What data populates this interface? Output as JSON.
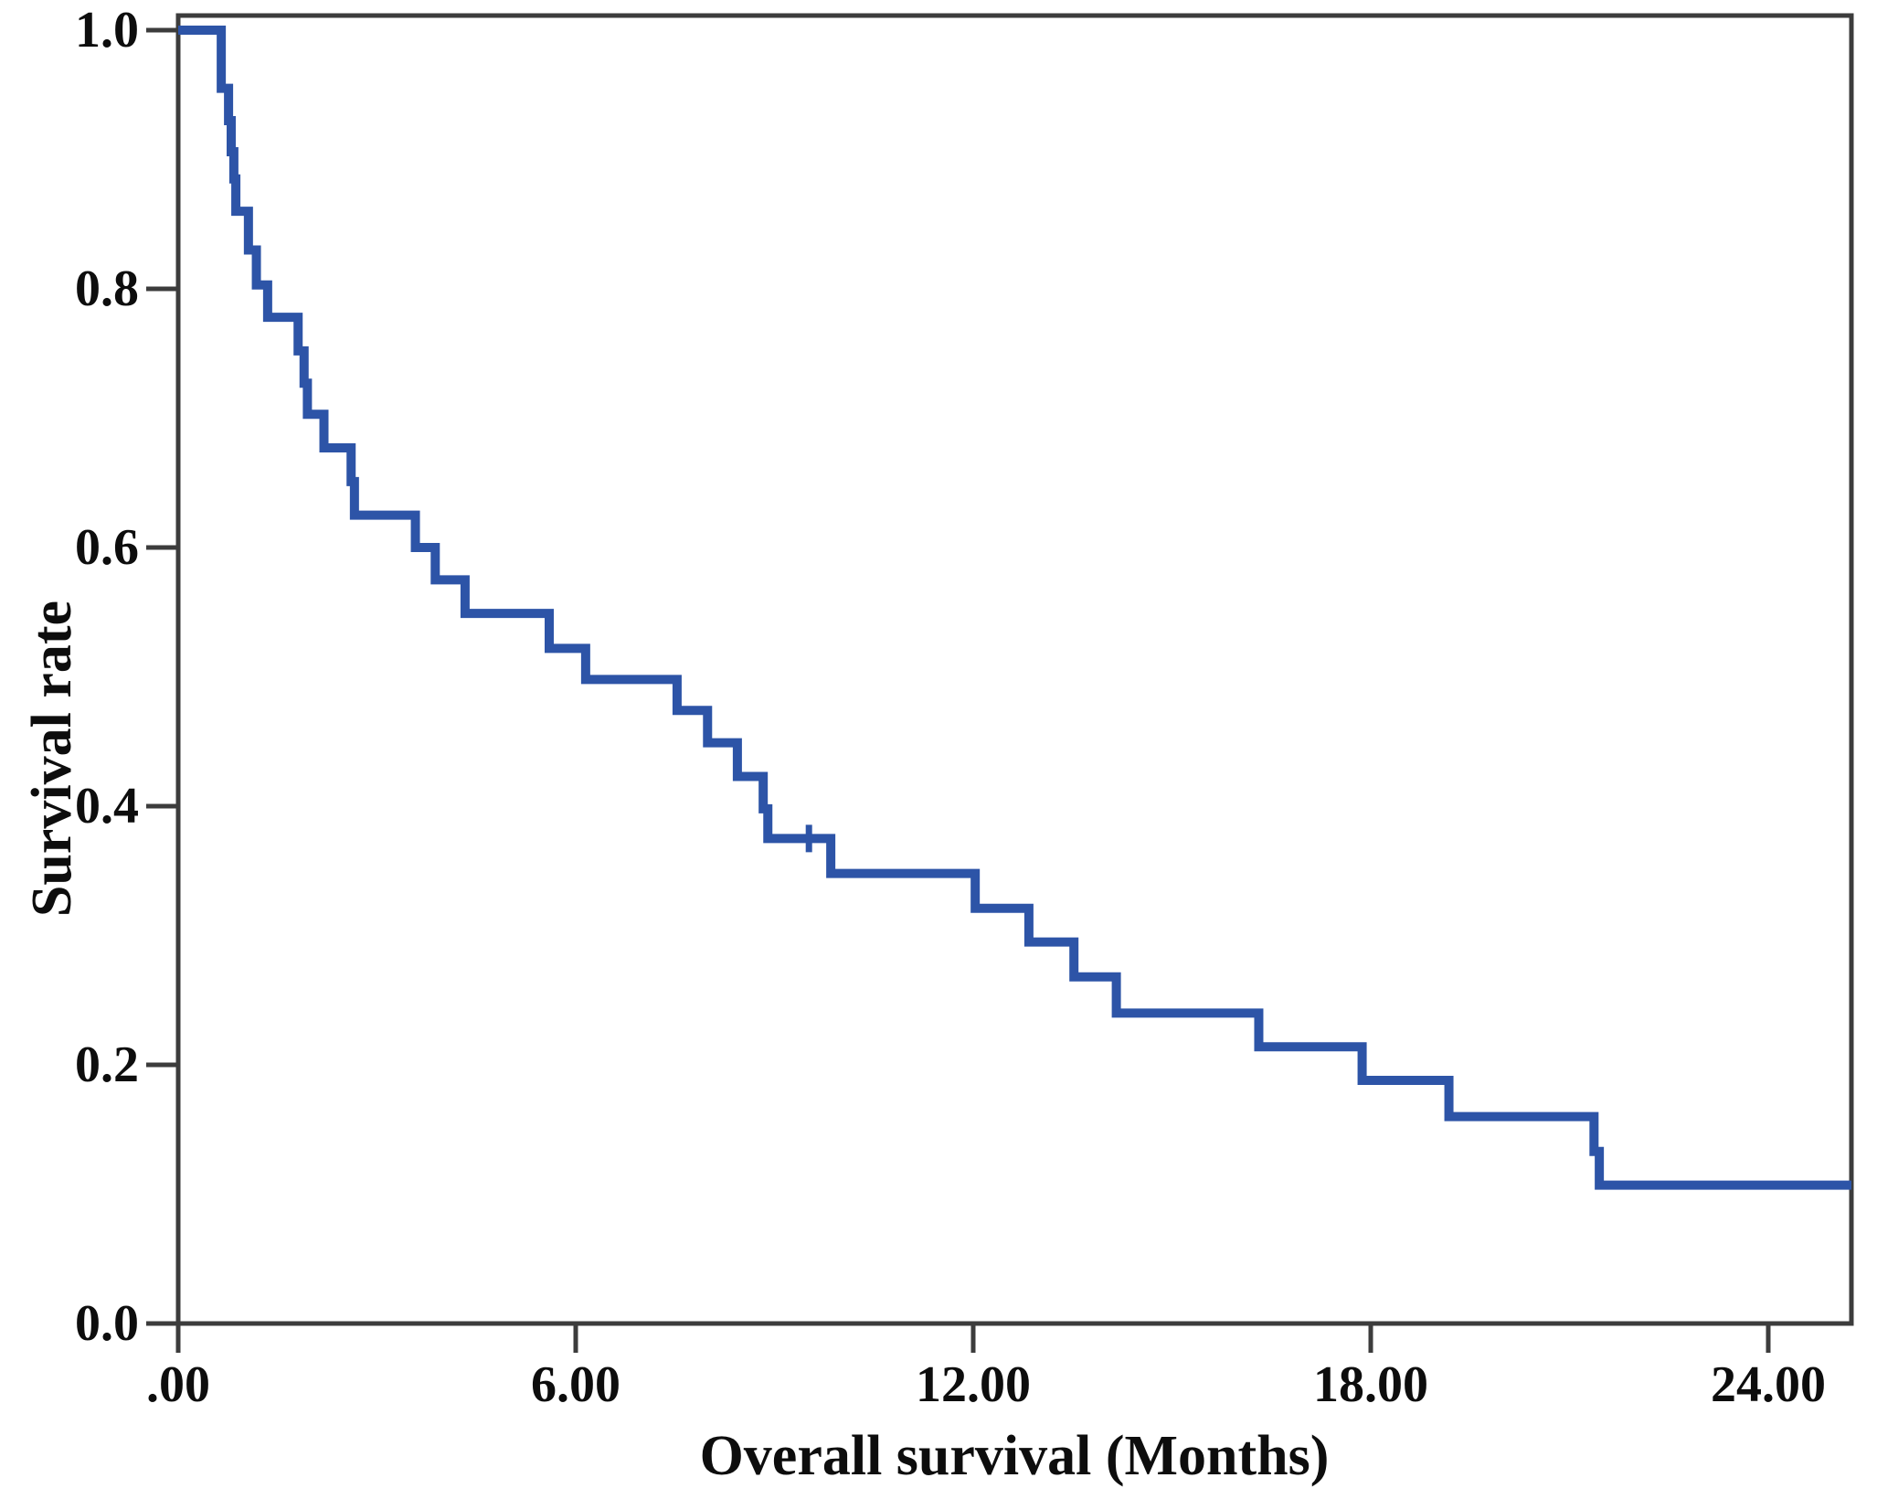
{
  "chart_data": {
    "type": "line",
    "subtype": "kaplan-meier-step",
    "title": "",
    "xlabel": "Overall survival (Months)",
    "ylabel": "Survival rate",
    "xlim": [
      0,
      25.3
    ],
    "ylim": [
      0.0,
      1.0
    ],
    "grid": false,
    "legend": "none",
    "background": "#ffffff",
    "frame_color": "#3c3c3c",
    "text_color": "#0d0d0d",
    "x_ticks": [
      {
        "value": 0,
        "label": ".00"
      },
      {
        "value": 6,
        "label": "6.00"
      },
      {
        "value": 12,
        "label": "12.00"
      },
      {
        "value": 18,
        "label": "18.00"
      },
      {
        "value": 24,
        "label": "24.00"
      }
    ],
    "y_ticks": [
      {
        "value": 1.0,
        "label": "1.0"
      },
      {
        "value": 0.8,
        "label": "0.8"
      },
      {
        "value": 0.6,
        "label": "0.6"
      },
      {
        "value": 0.4,
        "label": "0.4"
      },
      {
        "value": 0.2,
        "label": "0.2"
      },
      {
        "value": 0.0,
        "label": "0.0"
      }
    ],
    "series": [
      {
        "name": "Overall survival",
        "color": "#2d54a7",
        "line_width": 10,
        "start": {
          "t": 0.0,
          "s": 1.0
        },
        "steps": [
          {
            "t": 0.65,
            "s": 0.955
          },
          {
            "t": 0.76,
            "s": 0.93
          },
          {
            "t": 0.8,
            "s": 0.906
          },
          {
            "t": 0.84,
            "s": 0.885
          },
          {
            "t": 0.87,
            "s": 0.86
          },
          {
            "t": 1.06,
            "s": 0.83
          },
          {
            "t": 1.18,
            "s": 0.803
          },
          {
            "t": 1.35,
            "s": 0.778
          },
          {
            "t": 1.81,
            "s": 0.752
          },
          {
            "t": 1.9,
            "s": 0.727
          },
          {
            "t": 1.95,
            "s": 0.703
          },
          {
            "t": 2.2,
            "s": 0.677
          },
          {
            "t": 2.61,
            "s": 0.651
          },
          {
            "t": 2.66,
            "s": 0.625
          },
          {
            "t": 3.58,
            "s": 0.6
          },
          {
            "t": 3.88,
            "s": 0.575
          },
          {
            "t": 4.33,
            "s": 0.549
          },
          {
            "t": 5.6,
            "s": 0.522
          },
          {
            "t": 6.15,
            "s": 0.498
          },
          {
            "t": 7.53,
            "s": 0.474
          },
          {
            "t": 7.99,
            "s": 0.449
          },
          {
            "t": 8.44,
            "s": 0.423
          },
          {
            "t": 8.83,
            "s": 0.398
          },
          {
            "t": 8.9,
            "s": 0.375
          },
          {
            "t": 9.85,
            "s": 0.348
          },
          {
            "t": 12.03,
            "s": 0.321
          },
          {
            "t": 12.84,
            "s": 0.295
          },
          {
            "t": 13.52,
            "s": 0.268
          },
          {
            "t": 14.16,
            "s": 0.24
          },
          {
            "t": 16.31,
            "s": 0.214
          },
          {
            "t": 17.87,
            "s": 0.188
          },
          {
            "t": 19.18,
            "s": 0.16
          },
          {
            "t": 21.37,
            "s": 0.133
          },
          {
            "t": 21.45,
            "s": 0.107
          }
        ],
        "censored": [
          {
            "t": 9.52,
            "s": 0.375
          }
        ],
        "end_t": 25.26
      }
    ]
  }
}
